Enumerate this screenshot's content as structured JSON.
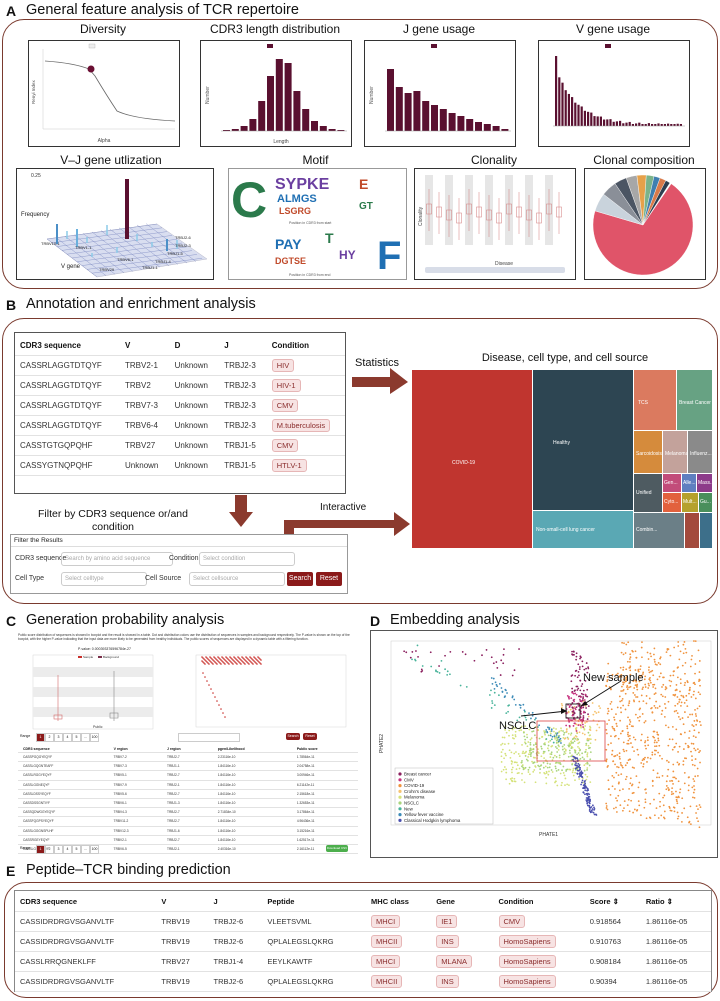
{
  "sectionA": {
    "letter": "A",
    "title": "General feature analysis of TCR repertoire",
    "panels": {
      "diversity": "Diversity",
      "cdr3": "CDR3 length distribution",
      "jgene": "J gene usage",
      "vgene": "V gene usage",
      "vj": "V–J gene utlization",
      "motif": "Motif",
      "clonality": "Clonality",
      "composition": "Clonal composition"
    },
    "axes": {
      "alpha": "Alpha",
      "renyi": "Renyi Index",
      "length": "Length",
      "number": "Number",
      "frequency": "Frequency",
      "vgene": "V gene",
      "clonality": "Clonality",
      "disease": "Disease",
      "pos_left": "Position in CDR3 from start",
      "pos_right": "Position in CDR3 from end"
    }
  },
  "sectionB": {
    "letter": "B",
    "title": "Annotation and enrichment analysis",
    "headers": [
      "CDR3 sequence",
      "V",
      "D",
      "J",
      "Condition"
    ],
    "rows": [
      [
        "CASSRLAGGTDTQYF",
        "TRBV2-1",
        "Unknown",
        "TRBJ2-3",
        "HIV"
      ],
      [
        "CASSRLAGGTDTQYF",
        "TRBV2",
        "Unknown",
        "TRBJ2-3",
        "HIV-1"
      ],
      [
        "CASSRLAGGTDTQYF",
        "TRBV7-3",
        "Unknown",
        "TRBJ2-3",
        "CMV"
      ],
      [
        "CASSRLAGGTDTQYF",
        "TRBV6-4",
        "Unknown",
        "TRBJ2-3",
        "M.tuberculosis"
      ],
      [
        "CASSTGTGQPQHF",
        "TRBV27",
        "Unknown",
        "TRBJ1-5",
        "CMV"
      ],
      [
        "CASSYGTNQPQHF",
        "Unknown",
        "Unknown",
        "TRBJ1-5",
        "HTLV-1"
      ]
    ],
    "statistics": "Statistics",
    "interactive": "Interactive",
    "filter_caption": "Filter by CDR3 sequence or/and condition",
    "treemap_title": "Disease, cell type, and cell source",
    "treemap": {
      "covid": "COVID-19",
      "healthy": "Healthy",
      "nsclc": "Non-small-cell lung cancer",
      "tcs": "TCS",
      "breast": "Breast Cancer",
      "sarcoidosis": "Sarcoidosis",
      "melanoma": "Melanoma",
      "influenza": "Influenz...",
      "unified": "Unified",
      "s1": "Gen...",
      "s2": "Alle...",
      "s3": "Mass...",
      "s4": "Cyto...",
      "s5": "Mult...",
      "s6": "Gu...",
      "s7": "Combin..."
    },
    "form": {
      "title": "Filter the Results",
      "cdr3_label": "CDR3 sequence",
      "cdr3_ph": "Search by amino acid sequence",
      "cond_label": "Condition",
      "cond_ph": "Select condition",
      "celltype_label": "Cell Type",
      "celltype_ph": "Select celltype",
      "cellsource_label": "Cell Source",
      "cellsource_ph": "Select cellsource",
      "search": "Search",
      "reset": "Reset"
    }
  },
  "sectionC": {
    "letter": "C",
    "title": "Generation probability analysis",
    "desc": "Public score distribution of sequences is showed in boxplot and the result is showed in a table. Dot and distribution colors use the distribution of sequences in samples and background respectively. The P-value is shown on the top of the boxplot, with the higher P-value indicating that the input data are more likely to be generated from healthy individuals. The public scores of sequences are displayed in a dynamic table with a filtering function.",
    "pvalue": "P-value: 0.000393376596784e-27",
    "legend": [
      "Sample",
      "Background"
    ],
    "xlabel": "Public",
    "table_headers": [
      "CDR3 sequence",
      "V region",
      "J region",
      "pgen/Likelihood",
      "Public score"
    ],
    "rows": [
      [
        "CASSPGQGYEQYF",
        "TRBV7-2",
        "TRBJ2-7",
        "2.23116e-10",
        "1.78564e-11"
      ],
      [
        "CASSLGQGNTEAFF",
        "TRBV7-3",
        "TRBJ1-1",
        "1.84116e-10",
        "2.04758e-11"
      ],
      [
        "CASSLRGGYEQYF",
        "TRBV5-1",
        "TRBJ2-7",
        "1.84116e-10",
        "3.00946e-11"
      ],
      [
        "CASSLGGNEQYF",
        "TRBV7-9",
        "TRBJ2-1",
        "1.84116e-10",
        "6.21142e-11"
      ],
      [
        "CASSLDSSYEQYF",
        "TRBV5-6",
        "TRBJ2-7",
        "1.84116e-10",
        "2.15618e-11"
      ],
      [
        "CASSDSSGNTIYF",
        "TRBV6-1",
        "TRBJ1-3",
        "1.84116e-10",
        "1.32653e-11"
      ],
      [
        "CASSQDWGGYEQYF",
        "TRBV4-3",
        "TRBJ2-7",
        "2.71834e-10",
        "3.17864e-11"
      ],
      [
        "CASSFQGPSYEQYF",
        "TRBV11-2",
        "TRBJ2-7",
        "1.84116e-10",
        "4.96436e-11"
      ],
      [
        "CASSLGGGNSPLHF",
        "TRBV12-3",
        "TRBJ1-6",
        "1.84116e-10",
        "3.15216e-11"
      ],
      [
        "CASSRGEYEQYF",
        "TRBV2-1",
        "TRBJ2-7",
        "1.84116e-10",
        "1.62517e-11"
      ],
      [
        "CASSLGRSEQYF",
        "TRBV6-5",
        "TRBJ2-1",
        "2.40316e-10",
        "2.16112e-11"
      ]
    ],
    "search": "Search",
    "reset": "Reset",
    "export": "Download CSV",
    "range_label": "Range",
    "pages": [
      "1",
      "2",
      "3",
      "4",
      "5",
      "...",
      "100"
    ]
  },
  "sectionD": {
    "letter": "D",
    "title": "Embedding analysis",
    "nsclc": "NSCLC",
    "new_sample": "New sample",
    "xlabel": "PHATE1",
    "ylabel": "PHATE2",
    "legend": [
      {
        "name": "Breast cancer",
        "color": "#8a1f5e"
      },
      {
        "name": "CMV",
        "color": "#c7327f"
      },
      {
        "name": "COVID-19",
        "color": "#f0933e"
      },
      {
        "name": "Crohn's disease",
        "color": "#f6c36f"
      },
      {
        "name": "Melanoma",
        "color": "#d5e27a"
      },
      {
        "name": "NSCLC",
        "color": "#a8d47c"
      },
      {
        "name": "New",
        "color": "#48b39a"
      },
      {
        "name": "Yellow fever vaccine",
        "color": "#3d8bb7"
      },
      {
        "name": "Classical Hodgkin lymphoma",
        "color": "#4a4fae"
      }
    ]
  },
  "sectionE": {
    "letter": "E",
    "title": "Peptide–TCR binding prediction",
    "headers": [
      "CDR3 sequence",
      "V",
      "J",
      "Peptide",
      "MHC class",
      "Gene",
      "Condition",
      "Score ⇕",
      "Ratio ⇕"
    ],
    "rows": [
      [
        "CASSIDRDRGVSGANVLTF",
        "TRBV19",
        "TRBJ2-6",
        "VLEETSVML",
        "MHCI",
        "IE1",
        "CMV",
        "0.918564",
        "1.86116e-05"
      ],
      [
        "CASSIDRDRGVSGANVLTF",
        "TRBV19",
        "TRBJ2-6",
        "QPLALEGSLQKRG",
        "MHCII",
        "INS",
        "HomoSapiens",
        "0.910763",
        "1.86116e-05"
      ],
      [
        "CASSLRRQGNEKLFF",
        "TRBV27",
        "TRBJ1-4",
        "EEYLKAWTF",
        "MHCI",
        "MLANA",
        "HomoSapiens",
        "0.908184",
        "1.86116e-05"
      ],
      [
        "CASSIDRDRGVSGANVLTF",
        "TRBV19",
        "TRBJ2-6",
        "QPLALEGSLQKRG",
        "MHCII",
        "INS",
        "HomoSapiens",
        "0.90394",
        "1.86116e-05"
      ]
    ]
  },
  "colors": {
    "accent": "#5a1030",
    "border": "#7a3a2e",
    "button": "#8b1a1a"
  }
}
